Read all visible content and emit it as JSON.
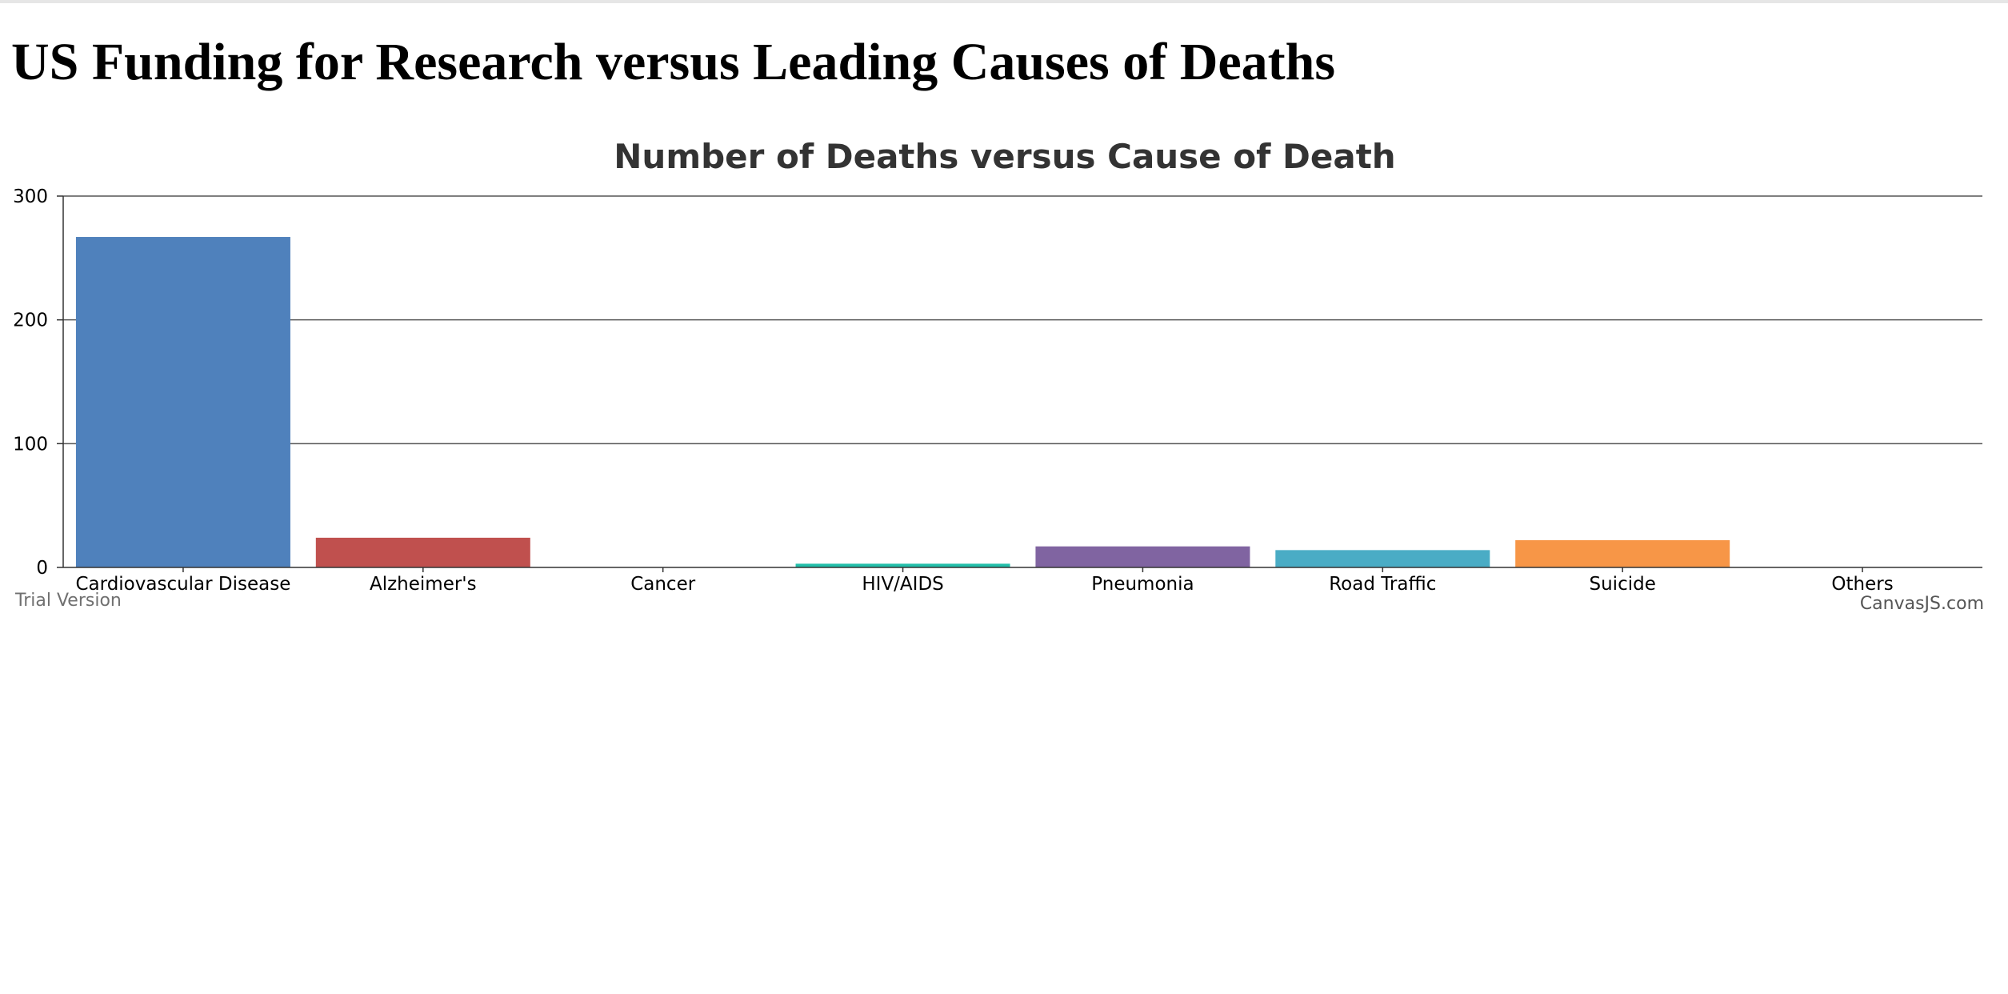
{
  "page": {
    "heading": "US Funding for Research versus Leading Causes of Deaths"
  },
  "colors": {
    "axis": "#333333",
    "grid": "#555555",
    "palette": [
      "#4f81bc",
      "#c0504e",
      "#9bbb58",
      "#23bfaa",
      "#8064a1",
      "#4aacc5",
      "#f79647",
      "#33558b"
    ]
  },
  "chart_data": {
    "type": "bar",
    "title": "Number of Deaths versus Cause of Death",
    "xlabel": "",
    "ylabel": "",
    "categories": [
      "Cardiovascular Disease",
      "Alzheimer's",
      "Cancer",
      "HIV/AIDS",
      "Pneumonia",
      "Road Traffic",
      "Suicide",
      "Others"
    ],
    "values": [
      267,
      24,
      0,
      3,
      17,
      14,
      22,
      0
    ],
    "ylim": [
      0,
      300
    ],
    "yticks": [
      0,
      100,
      200,
      300
    ],
    "grid": true,
    "legend": "none"
  },
  "credits": {
    "trial": "Trial Version",
    "brand": "CanvasJS.com"
  }
}
